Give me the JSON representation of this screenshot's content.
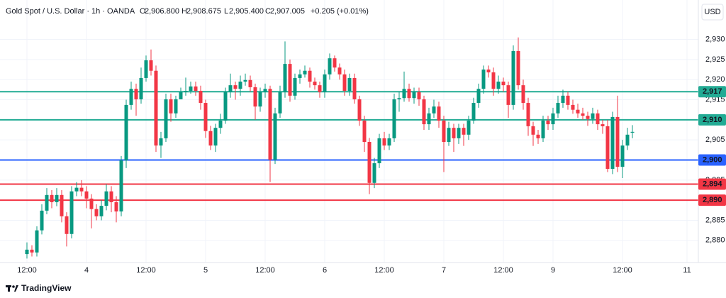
{
  "header": {
    "title": "Gold Spot / U.S. Dollar · 1h · OANDA",
    "ohlc": [
      {
        "key": "O",
        "value": "2,906.800"
      },
      {
        "key": "H",
        "value": "2,908.675"
      },
      {
        "key": "L",
        "value": "2,905.400"
      },
      {
        "key": "C",
        "value": "2,907.005"
      }
    ],
    "change": "+0.205 (+0.01%)",
    "currency": "USD"
  },
  "footer": {
    "brand": "TradingView"
  },
  "chart_data": {
    "type": "candlestick",
    "up_color": "#089981",
    "down_color": "#f23645",
    "grid": true,
    "categories": [
      "12:00",
      null,
      null,
      null,
      null,
      null,
      null,
      null,
      null,
      null,
      null,
      null,
      "4",
      null,
      null,
      null,
      null,
      null,
      null,
      null,
      null,
      null,
      null,
      null,
      "12:00",
      null,
      null,
      null,
      null,
      null,
      null,
      null,
      null,
      null,
      null,
      null,
      "5",
      null,
      null,
      null,
      null,
      null,
      null,
      null,
      null,
      null,
      null,
      null,
      "12:00",
      null,
      null,
      null,
      null,
      null,
      null,
      null,
      null,
      null,
      null,
      null,
      "6",
      null,
      null,
      null,
      null,
      null,
      null,
      null,
      null,
      null,
      null,
      null,
      "12:00",
      null,
      null,
      null,
      null,
      null,
      null,
      null,
      null,
      null,
      null,
      null,
      "7",
      null,
      null,
      null,
      null,
      null,
      null,
      null,
      null,
      null,
      null,
      null,
      "12:00",
      null,
      null,
      null,
      null,
      null,
      null,
      null,
      null,
      null,
      "9",
      null,
      null,
      null,
      null,
      null,
      null,
      null,
      null,
      null,
      null,
      null,
      null,
      null,
      "12:00",
      null,
      null,
      null,
      null,
      null,
      null,
      null,
      null,
      null,
      null,
      null,
      null,
      "11",
      null
    ],
    "open": [
      2876.6,
      2877.7,
      2877.0,
      2882.5,
      2887.4,
      2891.3,
      2889.5,
      2891.3,
      2886.0,
      2881.6,
      2892.2,
      2893.1,
      2892.2,
      2890.4,
      2887.8,
      2886.0,
      2888.6,
      2892.2,
      2889.5,
      2887.2,
      2899.9,
      2913.7,
      2917.7,
      2915.1,
      2920.4,
      2924.8,
      2922.2,
      2903.6,
      2905.4,
      2915.1,
      2911.6,
      2915.1,
      2916.9,
      2917.2,
      2918.3,
      2917.2,
      2914.2,
      2907.2,
      2903.6,
      2908.0,
      2909.8,
      2916.9,
      2918.6,
      2917.7,
      2919.5,
      2919.9,
      2918.1,
      2913.3,
      2916.9,
      2917.7,
      2900.1,
      2911.6,
      2916.9,
      2923.9,
      2916.0,
      2920.4,
      2921.3,
      2922.2,
      2919.5,
      2918.6,
      2916.9,
      2921.3,
      2925.3,
      2923.0,
      2921.3,
      2917.2,
      2920.4,
      2915.1,
      2909.8,
      2904.5,
      2894.3,
      2899.2,
      2905.4,
      2903.6,
      2905.4,
      2915.1,
      2915.4,
      2917.7,
      2915.4,
      2916.9,
      2915.1,
      2908.9,
      2911.6,
      2913.3,
      2909.8,
      2904.5,
      2908.0,
      2905.4,
      2908.0,
      2906.3,
      2909.8,
      2914.2,
      2917.7,
      2922.5,
      2921.8,
      2917.7,
      2919.5,
      2918.6,
      2913.7,
      2927.1,
      2918.6,
      2914.2,
      2908.4,
      2906.3,
      2905.4,
      2909.8,
      2908.9,
      2911.6,
      2914.2,
      2916.0,
      2913.7,
      2912.5,
      2911.6,
      2911.0,
      2910.2,
      2911.6,
      2908.9,
      2908.4,
      2897.8,
      2910.7,
      2898.3,
      2903.6,
      2906.8,
      null,
      null,
      null,
      null,
      null,
      null,
      null,
      null,
      null,
      null,
      null,
      null
    ],
    "high": [
      2879.5,
      2878.8,
      2883.5,
      2889.0,
      2893.0,
      2892.5,
      2893.0,
      2892.5,
      2887.0,
      2893.5,
      2894.5,
      2895.0,
      2893.5,
      2891.5,
      2889.0,
      2890.0,
      2894.0,
      2893.5,
      2891.0,
      2901.0,
      2915.0,
      2919.5,
      2919.0,
      2923.0,
      2926.0,
      2927.5,
      2923.5,
      2907.0,
      2916.5,
      2916.5,
      2916.0,
      2918.0,
      2920.5,
      2919.5,
      2919.5,
      2918.5,
      2915.0,
      2908.5,
      2909.0,
      2911.5,
      2918.0,
      2921.5,
      2919.5,
      2921.0,
      2921.5,
      2921.0,
      2919.0,
      2918.0,
      2919.0,
      2918.5,
      2913.0,
      2918.5,
      2929.5,
      2925.0,
      2921.5,
      2922.5,
      2923.5,
      2923.0,
      2920.5,
      2919.5,
      2922.5,
      2926.5,
      2926.0,
      2924.0,
      2922.5,
      2921.5,
      2921.5,
      2916.0,
      2911.0,
      2905.5,
      2900.5,
      2906.5,
      2907.0,
      2906.5,
      2916.5,
      2917.0,
      2922.0,
      2919.0,
      2918.0,
      2918.0,
      2916.0,
      2913.0,
      2915.0,
      2914.5,
      2911.0,
      2909.5,
      2909.0,
      2909.0,
      2909.0,
      2911.0,
      2915.5,
      2919.0,
      2923.5,
      2923.5,
      2923.0,
      2921.0,
      2920.5,
      2919.5,
      2928.5,
      2930.5,
      2920.0,
      2915.5,
      2909.5,
      2907.5,
      2911.0,
      2911.0,
      2913.0,
      2916.0,
      2917.5,
      2917.0,
      2915.0,
      2914.0,
      2913.0,
      2912.0,
      2913.0,
      2912.5,
      2910.0,
      2910.0,
      2912.0,
      2916.0,
      2905.0,
      2908.0,
      2908.675,
      null,
      null,
      null,
      null,
      null,
      null,
      null,
      null,
      null,
      null,
      null,
      null
    ],
    "low": [
      2875.5,
      2876.0,
      2876.0,
      2881.5,
      2886.5,
      2888.0,
      2888.5,
      2884.5,
      2878.5,
      2880.5,
      2891.0,
      2891.0,
      2888.0,
      2883.0,
      2885.0,
      2885.0,
      2887.5,
      2887.0,
      2884.5,
      2886.0,
      2898.0,
      2912.5,
      2911.0,
      2914.0,
      2919.5,
      2921.0,
      2902.0,
      2900.5,
      2904.5,
      2909.5,
      2910.5,
      2915.5,
      2916.0,
      2916.5,
      2916.0,
      2912.5,
      2905.5,
      2902.5,
      2902.0,
      2906.5,
      2909.0,
      2915.5,
      2915.0,
      2916.0,
      2918.5,
      2917.0,
      2910.0,
      2912.0,
      2915.5,
      2894.5,
      2899.0,
      2910.5,
      2915.5,
      2914.5,
      2915.0,
      2919.0,
      2920.5,
      2918.0,
      2917.5,
      2915.5,
      2915.5,
      2920.0,
      2922.0,
      2920.0,
      2916.0,
      2916.0,
      2914.0,
      2908.5,
      2902.0,
      2891.5,
      2893.0,
      2898.0,
      2902.5,
      2902.5,
      2904.5,
      2912.0,
      2914.5,
      2914.5,
      2914.0,
      2913.5,
      2907.5,
      2907.5,
      2910.5,
      2908.0,
      2897.0,
      2903.5,
      2902.0,
      2904.0,
      2903.5,
      2905.0,
      2909.0,
      2913.0,
      2916.5,
      2920.5,
      2916.0,
      2916.5,
      2917.0,
      2910.5,
      2912.5,
      2917.5,
      2912.5,
      2906.0,
      2903.5,
      2904.0,
      2904.5,
      2907.5,
      2907.5,
      2910.5,
      2913.0,
      2912.5,
      2911.5,
      2910.5,
      2910.0,
      2908.5,
      2909.0,
      2907.5,
      2906.5,
      2897.0,
      2896.5,
      2897.0,
      2895.5,
      2902.5,
      2905.4,
      null,
      null,
      null,
      null,
      null,
      null,
      null,
      null,
      null,
      null,
      null,
      null
    ],
    "close": [
      2877.7,
      2877.0,
      2882.5,
      2887.4,
      2891.3,
      2889.5,
      2891.3,
      2886.0,
      2881.6,
      2892.2,
      2893.1,
      2892.2,
      2890.4,
      2887.8,
      2886.0,
      2888.6,
      2892.2,
      2889.5,
      2887.2,
      2899.9,
      2913.7,
      2917.7,
      2915.1,
      2920.4,
      2924.8,
      2922.2,
      2903.6,
      2905.4,
      2915.1,
      2911.6,
      2915.1,
      2916.9,
      2917.2,
      2918.3,
      2917.2,
      2914.2,
      2907.2,
      2903.6,
      2908.0,
      2909.8,
      2916.9,
      2918.6,
      2917.7,
      2919.5,
      2919.9,
      2918.1,
      2913.3,
      2916.9,
      2917.7,
      2900.1,
      2911.6,
      2916.9,
      2923.9,
      2916.0,
      2920.4,
      2921.3,
      2922.2,
      2919.5,
      2918.6,
      2916.9,
      2921.3,
      2925.3,
      2923.0,
      2921.3,
      2917.2,
      2920.4,
      2915.1,
      2909.8,
      2904.5,
      2894.3,
      2899.2,
      2905.4,
      2903.6,
      2905.4,
      2915.1,
      2915.4,
      2917.7,
      2915.4,
      2916.9,
      2915.1,
      2908.9,
      2911.6,
      2913.3,
      2909.8,
      2904.5,
      2908.0,
      2905.4,
      2908.0,
      2906.3,
      2909.8,
      2914.2,
      2917.7,
      2922.5,
      2921.8,
      2917.7,
      2919.5,
      2918.6,
      2913.7,
      2927.1,
      2918.6,
      2914.2,
      2908.4,
      2906.3,
      2905.4,
      2909.8,
      2908.9,
      2911.6,
      2914.2,
      2916.0,
      2913.7,
      2912.5,
      2911.6,
      2911.0,
      2910.2,
      2911.6,
      2908.9,
      2908.4,
      2897.8,
      2910.7,
      2898.3,
      2903.6,
      2906.3,
      2907.005,
      null,
      null,
      null,
      null,
      null,
      null,
      null,
      null,
      null,
      null,
      null,
      null
    ],
    "ylim": [
      2874.5,
      2939.8
    ],
    "yticks": [
      {
        "value": 2880,
        "label": "2,880"
      },
      {
        "value": 2885,
        "label": "2,885"
      },
      {
        "value": 2890,
        "label": "2,890"
      },
      {
        "value": 2895,
        "label": "2,895"
      },
      {
        "value": 2900,
        "label": "2,900"
      },
      {
        "value": 2905,
        "label": "2,905"
      },
      {
        "value": 2910,
        "label": "2,910"
      },
      {
        "value": 2915,
        "label": "2,915"
      },
      {
        "value": 2920,
        "label": "2,920"
      },
      {
        "value": 2925,
        "label": "2,925"
      },
      {
        "value": 2930,
        "label": "2,930"
      }
    ],
    "levels": [
      {
        "value": 2917,
        "label": "2,917",
        "color": "#22ab94"
      },
      {
        "value": 2910,
        "label": "2,910",
        "color": "#22ab94"
      },
      {
        "value": 2900,
        "label": "2,900",
        "color": "#2962ff"
      },
      {
        "value": 2894,
        "label": "2,894",
        "color": "#f23645"
      },
      {
        "value": 2890,
        "label": "2,890",
        "color": "#f23645"
      }
    ]
  }
}
